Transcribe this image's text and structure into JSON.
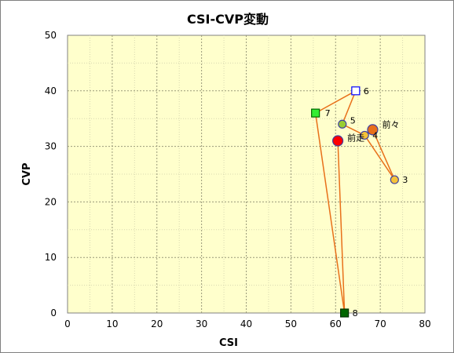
{
  "chart_data": {
    "type": "scatter",
    "title": "CSI-CVP変動",
    "xlabel": "CSI",
    "ylabel": "CVP",
    "xlim": [
      0,
      80
    ],
    "ylim": [
      0,
      50
    ],
    "x_ticks": [
      0,
      10,
      20,
      30,
      40,
      50,
      60,
      70,
      80
    ],
    "y_ticks": [
      0,
      10,
      20,
      30,
      40,
      50
    ],
    "grid": true,
    "plot_background": "#ffffcc",
    "line_color": "#e8701a",
    "path": [
      {
        "label": "前々",
        "x": 68.3,
        "y": 33.0,
        "marker": "circle-large",
        "fill": "#e8701a",
        "stroke": "#4040a0"
      },
      {
        "label": "3",
        "x": 73.2,
        "y": 24.0,
        "marker": "circle",
        "fill": "#f5c23a",
        "stroke": "#4040a0"
      },
      {
        "label": "4",
        "x": 66.5,
        "y": 32.0,
        "marker": "circle",
        "fill": "#f5c23a",
        "stroke": "#4040a0"
      },
      {
        "label": "5",
        "x": 61.5,
        "y": 34.0,
        "marker": "circle",
        "fill": "#9acd32",
        "stroke": "#4040a0"
      },
      {
        "label": "6",
        "x": 64.5,
        "y": 40.0,
        "marker": "square",
        "fill": "#ffffff",
        "stroke": "#0000ff"
      },
      {
        "label": "7",
        "x": 55.5,
        "y": 36.0,
        "marker": "square",
        "fill": "#33ee33",
        "stroke": "#006600"
      },
      {
        "label": "8",
        "x": 62.0,
        "y": 0.0,
        "marker": "square",
        "fill": "#006600",
        "stroke": "#003300"
      }
    ],
    "current": {
      "label": "前走",
      "x": 60.5,
      "y": 31.0,
      "marker": "circle-large",
      "fill": "#ff0000",
      "stroke": "#4040a0"
    }
  }
}
